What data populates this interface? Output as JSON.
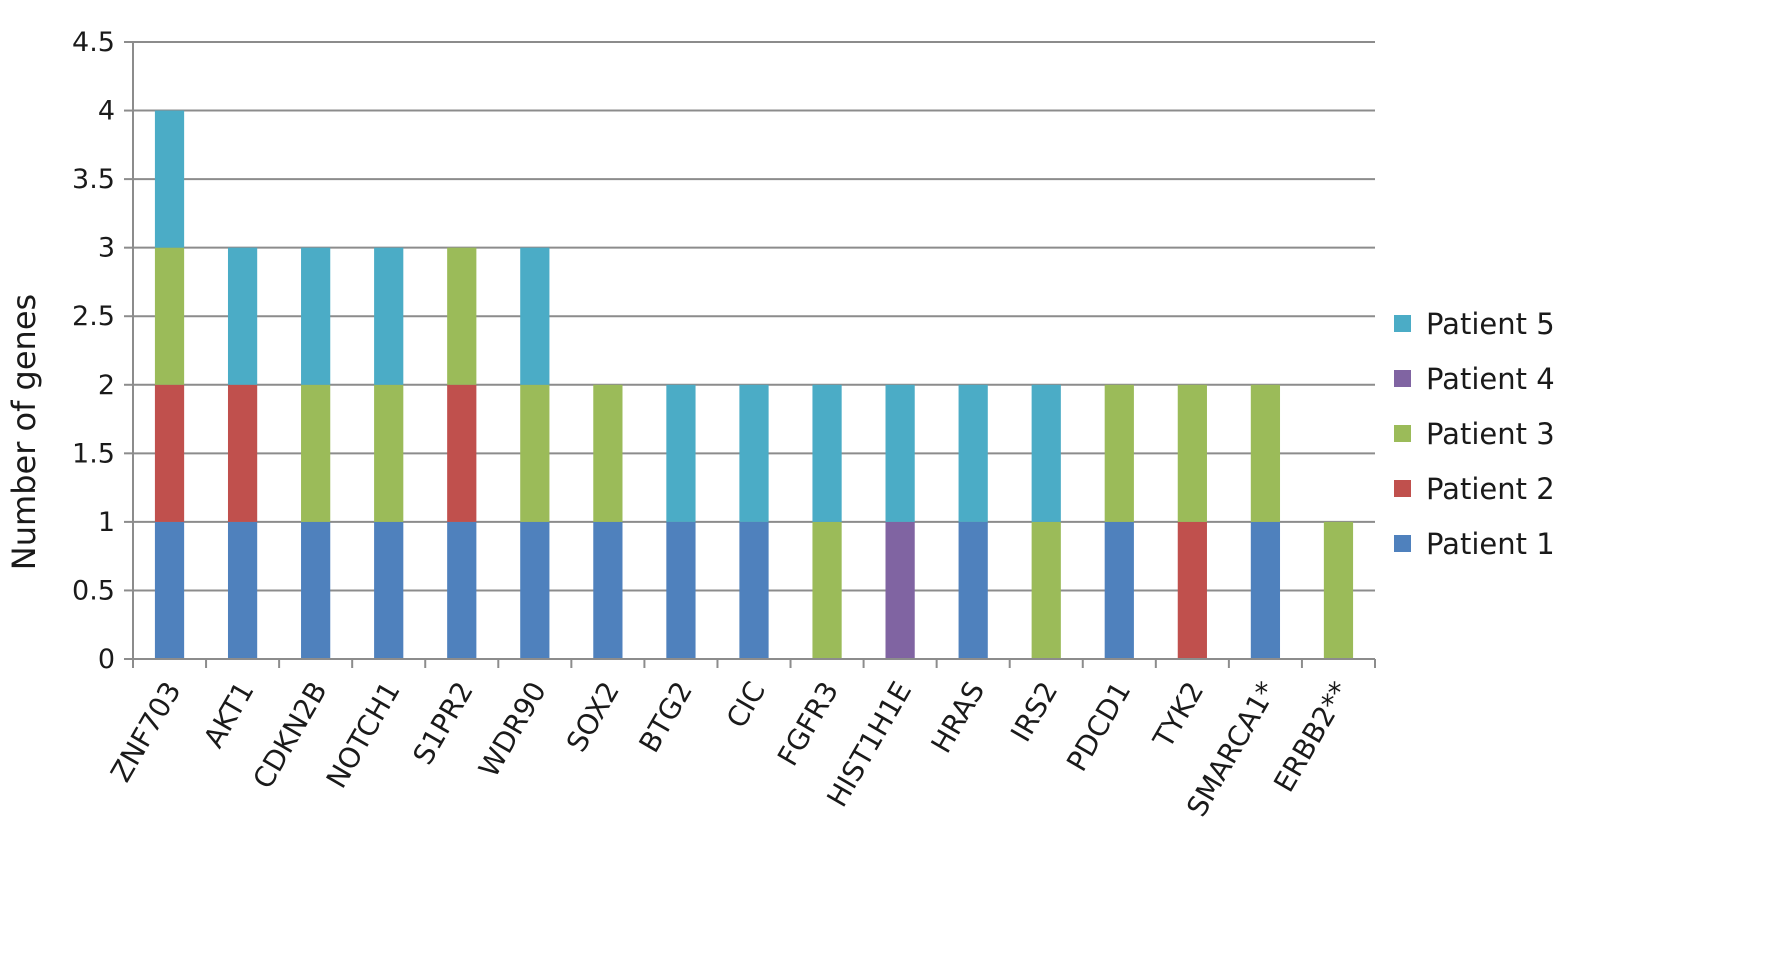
{
  "chart_data": {
    "type": "bar",
    "stacked": true,
    "title": "",
    "xlabel": "",
    "ylabel": "Number of genes",
    "ylim": [
      0,
      4.5
    ],
    "yticks": [
      "0",
      "0.5",
      "1",
      "1.5",
      "2",
      "2.5",
      "3",
      "3.5",
      "4",
      "4.5"
    ],
    "grid": true,
    "legend_position": "right",
    "categories": [
      "ZNF703",
      "AKT1",
      "CDKN2B",
      "NOTCH1",
      "S1PR2",
      "WDR90",
      "SOX2",
      "BTG2",
      "CIC",
      "FGFR3",
      "HIST1H1E",
      "HRAS",
      "IRS2",
      "PDCD1",
      "TYK2",
      "SMARCA1*",
      "ERBB2**"
    ],
    "series": [
      {
        "name": "Patient 1",
        "color": "#4f81bd",
        "values": [
          1,
          1,
          1,
          1,
          1,
          1,
          1,
          1,
          1,
          0,
          0,
          1,
          0,
          1,
          0,
          1,
          0
        ]
      },
      {
        "name": "Patient 2",
        "color": "#c0504d",
        "values": [
          1,
          1,
          0,
          0,
          1,
          0,
          0,
          0,
          0,
          0,
          0,
          0,
          0,
          0,
          1,
          0,
          0
        ]
      },
      {
        "name": "Patient 3",
        "color": "#9bbb59",
        "values": [
          1,
          0,
          1,
          1,
          1,
          1,
          1,
          0,
          0,
          1,
          0,
          0,
          1,
          1,
          1,
          1,
          1
        ]
      },
      {
        "name": "Patient 4",
        "color": "#8064a2",
        "values": [
          0,
          0,
          0,
          0,
          0,
          0,
          0,
          0,
          0,
          0,
          1,
          0,
          0,
          0,
          0,
          0,
          0
        ]
      },
      {
        "name": "Patient 5",
        "color": "#4bacc6",
        "values": [
          1,
          1,
          1,
          1,
          0,
          1,
          0,
          1,
          1,
          1,
          1,
          1,
          1,
          0,
          0,
          0,
          0
        ]
      }
    ],
    "legend_order": [
      "Patient 5",
      "Patient 4",
      "Patient 3",
      "Patient 2",
      "Patient 1"
    ]
  }
}
